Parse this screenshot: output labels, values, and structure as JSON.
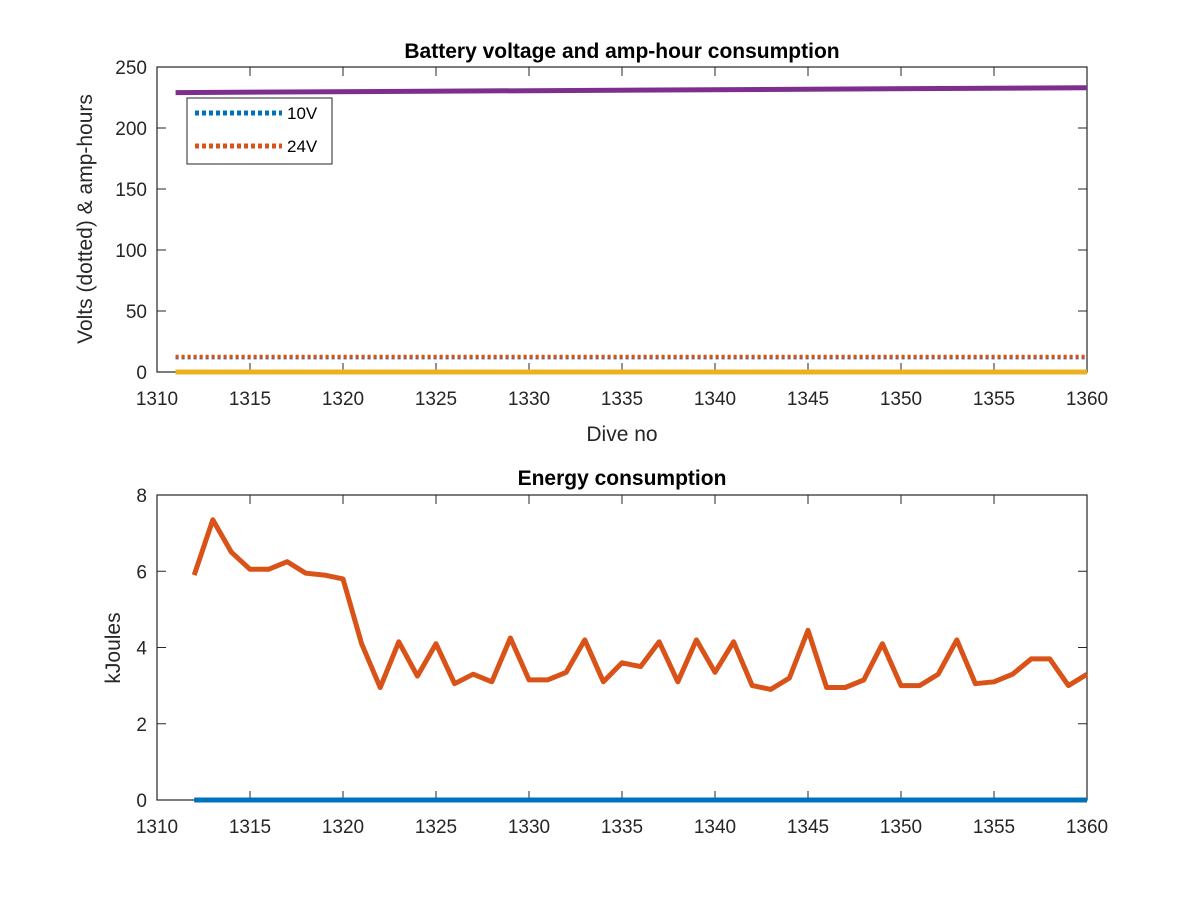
{
  "chart_data": [
    {
      "type": "line",
      "title": "Battery voltage and amp-hour consumption",
      "xlabel": "Dive no",
      "ylabel": "Volts (dotted) & amp-hours",
      "xlim": [
        1310,
        1360
      ],
      "ylim": [
        0,
        250
      ],
      "xticks": [
        1310,
        1315,
        1320,
        1325,
        1330,
        1335,
        1340,
        1345,
        1350,
        1355,
        1360
      ],
      "yticks": [
        0,
        50,
        100,
        150,
        200,
        250
      ],
      "legend": {
        "position": "top-left",
        "entries": [
          "10V",
          "24V"
        ]
      },
      "series": [
        {
          "name": "10V",
          "style": "dotted",
          "color": "#0072bd",
          "x": [
            1311,
            1360
          ],
          "y": [
            12,
            12
          ]
        },
        {
          "name": "24V",
          "style": "dotted",
          "color": "#d95319",
          "x": [
            1311,
            1360
          ],
          "y": [
            12.5,
            12.5
          ]
        },
        {
          "style": "solid",
          "color": "#edb120",
          "x": [
            1311,
            1360
          ],
          "y": [
            0,
            0
          ]
        },
        {
          "style": "solid",
          "color": "#7e2f8e",
          "x": [
            1311,
            1360
          ],
          "y": [
            229,
            233
          ]
        }
      ]
    },
    {
      "type": "line",
      "title": "Energy consumption",
      "xlabel": "",
      "ylabel": "kJoules",
      "xlim": [
        1310,
        1360
      ],
      "ylim": [
        0,
        8
      ],
      "xticks": [
        1310,
        1315,
        1320,
        1325,
        1330,
        1335,
        1340,
        1345,
        1350,
        1355,
        1360
      ],
      "yticks": [
        0,
        2,
        4,
        6,
        8
      ],
      "series": [
        {
          "style": "solid",
          "color": "#0072bd",
          "x": [
            1312,
            1360
          ],
          "y": [
            0,
            0
          ]
        },
        {
          "style": "solid",
          "color": "#d95319",
          "x": [
            1312,
            1313,
            1314,
            1315,
            1316,
            1317,
            1318,
            1319,
            1320,
            1321,
            1322,
            1323,
            1324,
            1325,
            1326,
            1327,
            1328,
            1329,
            1330,
            1331,
            1332,
            1333,
            1334,
            1335,
            1336,
            1337,
            1338,
            1339,
            1340,
            1341,
            1342,
            1343,
            1344,
            1345,
            1346,
            1347,
            1348,
            1349,
            1350,
            1351,
            1352,
            1353,
            1354,
            1355,
            1356,
            1357,
            1358,
            1359,
            1360
          ],
          "y": [
            5.9,
            7.35,
            6.5,
            6.05,
            6.05,
            6.25,
            5.95,
            5.9,
            5.8,
            4.1,
            2.95,
            4.15,
            3.25,
            4.1,
            3.05,
            3.3,
            3.1,
            4.25,
            3.15,
            3.15,
            3.35,
            4.2,
            3.1,
            3.6,
            3.5,
            4.15,
            3.1,
            4.2,
            3.35,
            4.15,
            3.0,
            2.9,
            3.2,
            4.45,
            2.95,
            2.95,
            3.15,
            4.1,
            3.0,
            3.0,
            3.3,
            4.2,
            3.05,
            3.1,
            3.3,
            3.7,
            3.7,
            3.0,
            3.3
          ]
        }
      ]
    }
  ]
}
